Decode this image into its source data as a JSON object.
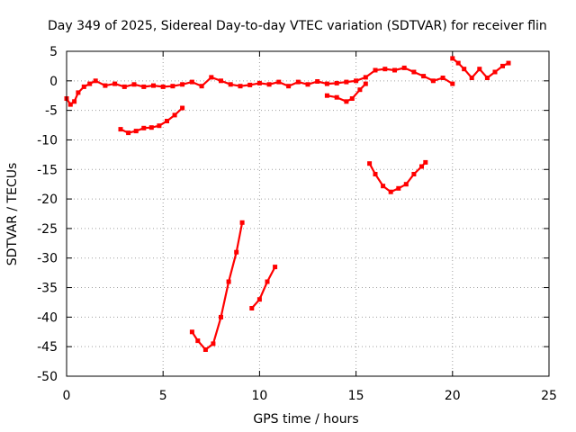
{
  "chart_data": {
    "type": "scatter",
    "title": "Day 349 of 2025, Sidereal Day-to-day VTEC variation (SDTVAR) for receiver flin",
    "xlabel": "GPS time / hours",
    "ylabel": "SDTVAR / TECUs",
    "xlim": [
      0,
      25
    ],
    "ylim": [
      -50,
      5
    ],
    "xticks": [
      0,
      5,
      10,
      15,
      20,
      25
    ],
    "yticks": [
      5,
      0,
      -5,
      -10,
      -15,
      -20,
      -25,
      -30,
      -35,
      -40,
      -45,
      -50
    ],
    "grid": true,
    "legend": "none",
    "color": "#ff0000",
    "series": [
      {
        "points": [
          [
            0,
            -3
          ],
          [
            0.2,
            -4
          ],
          [
            0.4,
            -3.5
          ],
          [
            0.6,
            -2
          ],
          [
            0.9,
            -1
          ],
          [
            1.2,
            -0.5
          ],
          [
            1.5,
            0
          ],
          [
            2,
            -0.8
          ],
          [
            2.5,
            -0.5
          ],
          [
            3,
            -1
          ],
          [
            3.5,
            -0.6
          ],
          [
            4,
            -1
          ],
          [
            4.5,
            -0.8
          ],
          [
            5,
            -1
          ],
          [
            5.5,
            -0.9
          ],
          [
            6,
            -0.6
          ],
          [
            6.5,
            -0.2
          ],
          [
            7,
            -0.9
          ],
          [
            7.5,
            0.6
          ],
          [
            8,
            0
          ],
          [
            8.5,
            -0.6
          ],
          [
            9,
            -0.9
          ],
          [
            9.5,
            -0.7
          ],
          [
            10,
            -0.4
          ],
          [
            10.5,
            -0.6
          ],
          [
            11,
            -0.2
          ],
          [
            11.5,
            -0.9
          ],
          [
            12,
            -0.2
          ],
          [
            12.5,
            -0.6
          ],
          [
            13,
            -0.1
          ],
          [
            13.5,
            -0.5
          ],
          [
            14,
            -0.4
          ],
          [
            14.5,
            -0.2
          ],
          [
            15,
            0
          ],
          [
            15.5,
            0.6
          ],
          [
            16,
            1.8
          ],
          [
            16.5,
            2
          ],
          [
            17,
            1.8
          ],
          [
            17.5,
            2.2
          ],
          [
            18,
            1.5
          ],
          [
            18.5,
            0.8
          ],
          [
            19,
            0
          ],
          [
            19.5,
            0.5
          ],
          [
            20,
            -0.5
          ]
        ]
      },
      {
        "points": [
          [
            2.8,
            -8.2
          ],
          [
            3.2,
            -8.8
          ],
          [
            3.6,
            -8.5
          ],
          [
            4,
            -8
          ],
          [
            4.4,
            -7.9
          ],
          [
            4.8,
            -7.6
          ],
          [
            5.2,
            -6.8
          ],
          [
            5.6,
            -5.8
          ],
          [
            6,
            -4.6
          ]
        ]
      },
      {
        "points": [
          [
            6.5,
            -42.5
          ],
          [
            6.8,
            -44
          ],
          [
            7.2,
            -45.5
          ],
          [
            7.6,
            -44.5
          ],
          [
            8,
            -40
          ],
          [
            8.4,
            -34
          ],
          [
            8.8,
            -29
          ],
          [
            9.1,
            -24
          ]
        ]
      },
      {
        "points": [
          [
            9.6,
            -38.5
          ],
          [
            10,
            -37
          ],
          [
            10.4,
            -34
          ],
          [
            10.8,
            -31.5
          ]
        ]
      },
      {
        "points": [
          [
            13.5,
            -2.5
          ],
          [
            14,
            -2.8
          ],
          [
            14.5,
            -3.5
          ],
          [
            14.8,
            -3
          ],
          [
            15.2,
            -1.5
          ],
          [
            15.5,
            -0.5
          ]
        ]
      },
      {
        "points": [
          [
            15.7,
            -14
          ],
          [
            16,
            -15.8
          ],
          [
            16.4,
            -17.8
          ],
          [
            16.8,
            -18.8
          ],
          [
            17.2,
            -18.2
          ],
          [
            17.6,
            -17.5
          ],
          [
            18,
            -15.8
          ],
          [
            18.4,
            -14.5
          ],
          [
            18.6,
            -13.8
          ]
        ]
      },
      {
        "points": [
          [
            20,
            3.8
          ],
          [
            20.3,
            3
          ],
          [
            20.6,
            2
          ],
          [
            21,
            0.5
          ],
          [
            21.4,
            2
          ],
          [
            21.8,
            0.5
          ],
          [
            22.2,
            1.5
          ],
          [
            22.6,
            2.5
          ],
          [
            22.9,
            3
          ]
        ]
      }
    ]
  }
}
